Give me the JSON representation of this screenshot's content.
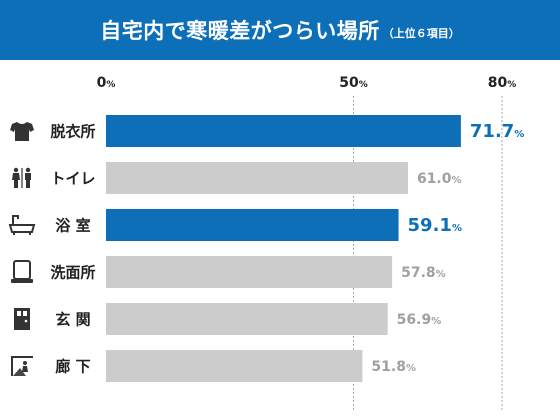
{
  "title": {
    "main": "自宅内で寒暖差がつらい場所",
    "sub": "（上位６項目）"
  },
  "colors": {
    "title_bg": "#0d6fb8",
    "highlight": "#0d6fb8",
    "normal_bar": "#cccccc",
    "normal_label": "#a0a0a0",
    "icon": "#333333",
    "grid": "#aaaaaa"
  },
  "chart_data": {
    "type": "bar",
    "orientation": "horizontal",
    "categories": [
      "脱衣所",
      "トイレ",
      "浴 室",
      "洗面所",
      "玄 関",
      "廊 下"
    ],
    "icons": [
      "shirt-icon",
      "restroom-icon",
      "bathtub-icon",
      "mirror-icon",
      "door-icon",
      "hallway-icon"
    ],
    "values": [
      71.7,
      61.0,
      59.1,
      57.8,
      56.9,
      51.8
    ],
    "highlight": [
      true,
      false,
      true,
      false,
      false,
      false
    ],
    "value_labels": [
      "71.7",
      "61.0",
      "59.1",
      "57.8",
      "56.9",
      "51.8"
    ],
    "unit": "%",
    "xticks": [
      {
        "value": 0,
        "label": "0"
      },
      {
        "value": 50,
        "label": "50"
      },
      {
        "value": 80,
        "label": "80"
      }
    ],
    "xlim": [
      0,
      80
    ],
    "grid": true
  }
}
